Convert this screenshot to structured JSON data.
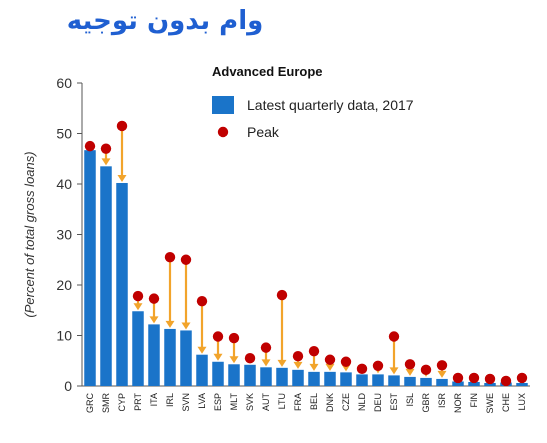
{
  "overlay_title": "وام بدون توجیه",
  "colors": {
    "bar": "#1a74c9",
    "peak": "#c00000",
    "arrow": "#f2a42b",
    "title": "#1f5fd1"
  },
  "chart_data": {
    "type": "bar",
    "title": "",
    "legend_title": "Advanced Europe",
    "legend_placement": "top-right",
    "xlabel": "",
    "ylabel": "(Percent of total gross loans)",
    "ylim": [
      0,
      60
    ],
    "yticks": [
      0,
      10,
      20,
      30,
      40,
      50,
      60
    ],
    "grid": false,
    "categories": [
      "GRC",
      "SMR",
      "CYP",
      "PRT",
      "ITA",
      "IRL",
      "SVN",
      "LVA",
      "ESP",
      "MLT",
      "SVK",
      "AUT",
      "LTU",
      "FRA",
      "BEL",
      "DNK",
      "CZE",
      "NLD",
      "DEU",
      "EST",
      "ISL",
      "GBR",
      "ISR",
      "NOR",
      "FIN",
      "SWE",
      "CHE",
      "LUX"
    ],
    "series": [
      {
        "name": "Latest quarterly data, 2017",
        "kind": "bar",
        "values": [
          46.7,
          43.5,
          40.2,
          14.8,
          12.2,
          11.3,
          11.0,
          6.2,
          4.8,
          4.3,
          4.2,
          3.7,
          3.6,
          3.2,
          2.8,
          2.8,
          2.7,
          2.3,
          2.3,
          2.1,
          1.8,
          1.6,
          1.4,
          0.9,
          0.8,
          0.6,
          0.7,
          0.6
        ]
      },
      {
        "name": "Peak",
        "kind": "marker",
        "values": [
          47.5,
          47.0,
          51.5,
          17.8,
          17.3,
          25.5,
          25.0,
          16.8,
          9.8,
          9.5,
          5.5,
          7.6,
          18.0,
          5.9,
          6.9,
          5.2,
          4.8,
          3.4,
          4.0,
          9.8,
          4.3,
          3.2,
          4.1,
          1.6,
          1.6,
          1.4,
          1.0,
          1.6
        ]
      }
    ]
  }
}
